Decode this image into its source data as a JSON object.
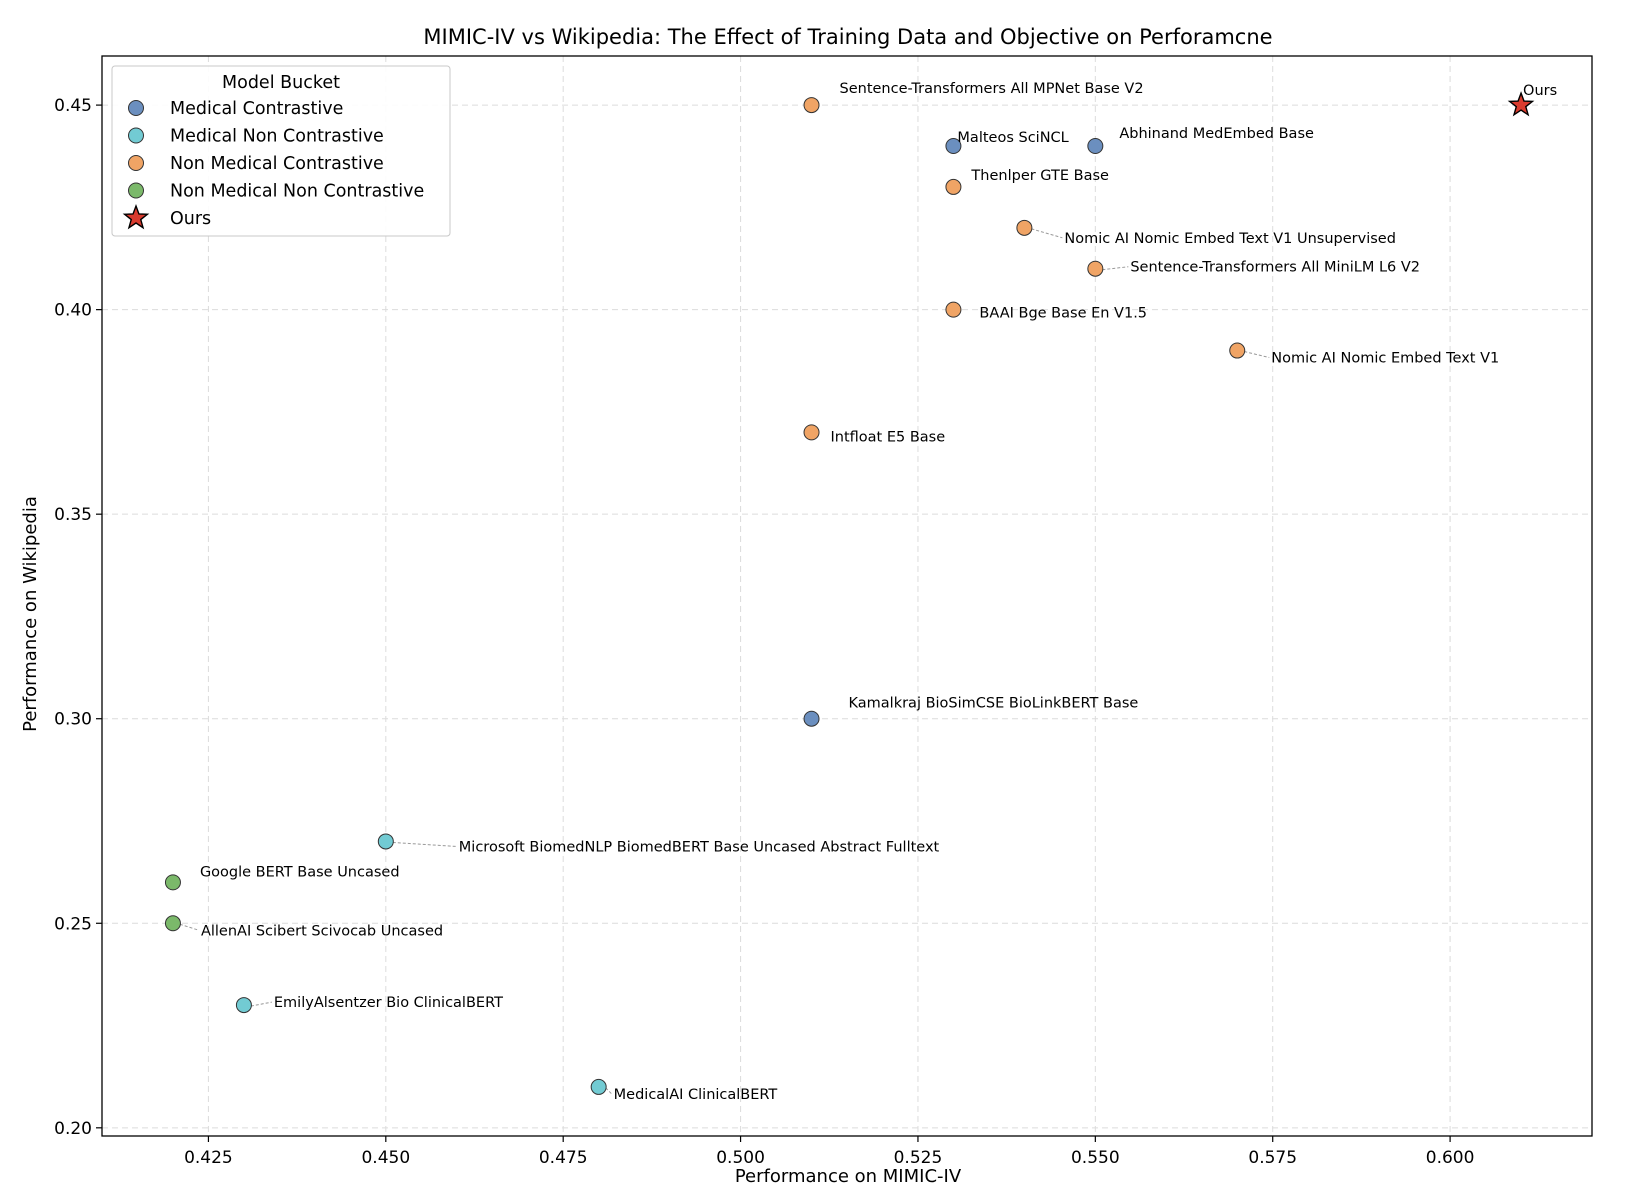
{
  "chart_data": {
    "type": "scatter",
    "title": "MIMIC-IV vs Wikipedia: The Effect of Training Data and Objective on Perforamcne",
    "xlabel": "Performance on MIMIC-IV",
    "ylabel": "Performance on Wikipedia",
    "xlim": [
      0.41,
      0.62
    ],
    "ylim": [
      0.198,
      0.462
    ],
    "xticks": [
      0.425,
      0.45,
      0.475,
      0.5,
      0.525,
      0.55,
      0.575,
      0.6
    ],
    "xtick_labels": [
      "0.425",
      "0.450",
      "0.475",
      "0.500",
      "0.525",
      "0.550",
      "0.575",
      "0.600"
    ],
    "yticks": [
      0.2,
      0.25,
      0.3,
      0.35,
      0.4,
      0.45
    ],
    "ytick_labels": [
      "0.20",
      "0.25",
      "0.30",
      "0.35",
      "0.40",
      "0.45"
    ],
    "grid": true,
    "legend": {
      "title": "Model Bucket",
      "placement": "top-left",
      "entries": [
        "Medical Contrastive",
        "Medical Non Contrastive",
        "Non Medical Contrastive",
        "Non Medical Non Contrastive",
        "Ours"
      ]
    },
    "series": [
      {
        "name": "Medical Contrastive",
        "color": "#6b8fbf",
        "marker": "circle",
        "points": [
          {
            "x": 0.53,
            "y": 0.44,
            "label": "Malteos SciNCL"
          },
          {
            "x": 0.55,
            "y": 0.44,
            "label": "Abhinand MedEmbed Base"
          },
          {
            "x": 0.51,
            "y": 0.3,
            "label": "Kamalkraj BioSimCSE BioLinkBERT Base"
          }
        ]
      },
      {
        "name": "Medical Non Contrastive",
        "color": "#72cbd3",
        "marker": "circle",
        "points": [
          {
            "x": 0.45,
            "y": 0.27,
            "label": "Microsoft BiomedNLP BiomedBERT Base Uncased Abstract Fulltext"
          },
          {
            "x": 0.43,
            "y": 0.23,
            "label": "EmilyAlsentzer Bio ClinicalBERT"
          },
          {
            "x": 0.48,
            "y": 0.21,
            "label": "MedicalAI ClinicalBERT"
          }
        ]
      },
      {
        "name": "Non Medical Contrastive",
        "color": "#f0a465",
        "marker": "circle",
        "points": [
          {
            "x": 0.51,
            "y": 0.45,
            "label": "Sentence-Transformers All MPNet Base V2"
          },
          {
            "x": 0.53,
            "y": 0.43,
            "label": "Thenlper GTE Base"
          },
          {
            "x": 0.54,
            "y": 0.42,
            "label": "Nomic AI Nomic Embed Text V1 Unsupervised"
          },
          {
            "x": 0.55,
            "y": 0.41,
            "label": "Sentence-Transformers All MiniLM L6 V2"
          },
          {
            "x": 0.53,
            "y": 0.4,
            "label": "BAAI Bge Base En V1.5"
          },
          {
            "x": 0.57,
            "y": 0.39,
            "label": "Nomic AI Nomic Embed Text V1"
          },
          {
            "x": 0.51,
            "y": 0.37,
            "label": "Intfloat E5 Base"
          }
        ]
      },
      {
        "name": "Non Medical Non Contrastive",
        "color": "#7bb96a",
        "marker": "circle",
        "points": [
          {
            "x": 0.42,
            "y": 0.26,
            "label": "Google BERT Base Uncased"
          },
          {
            "x": 0.42,
            "y": 0.25,
            "label": "AllenAI Scibert Scivocab Uncased"
          }
        ]
      },
      {
        "name": "Ours",
        "color": "#d93b2e",
        "marker": "star",
        "points": [
          {
            "x": 0.61,
            "y": 0.45,
            "label": "Ours"
          }
        ]
      }
    ]
  }
}
